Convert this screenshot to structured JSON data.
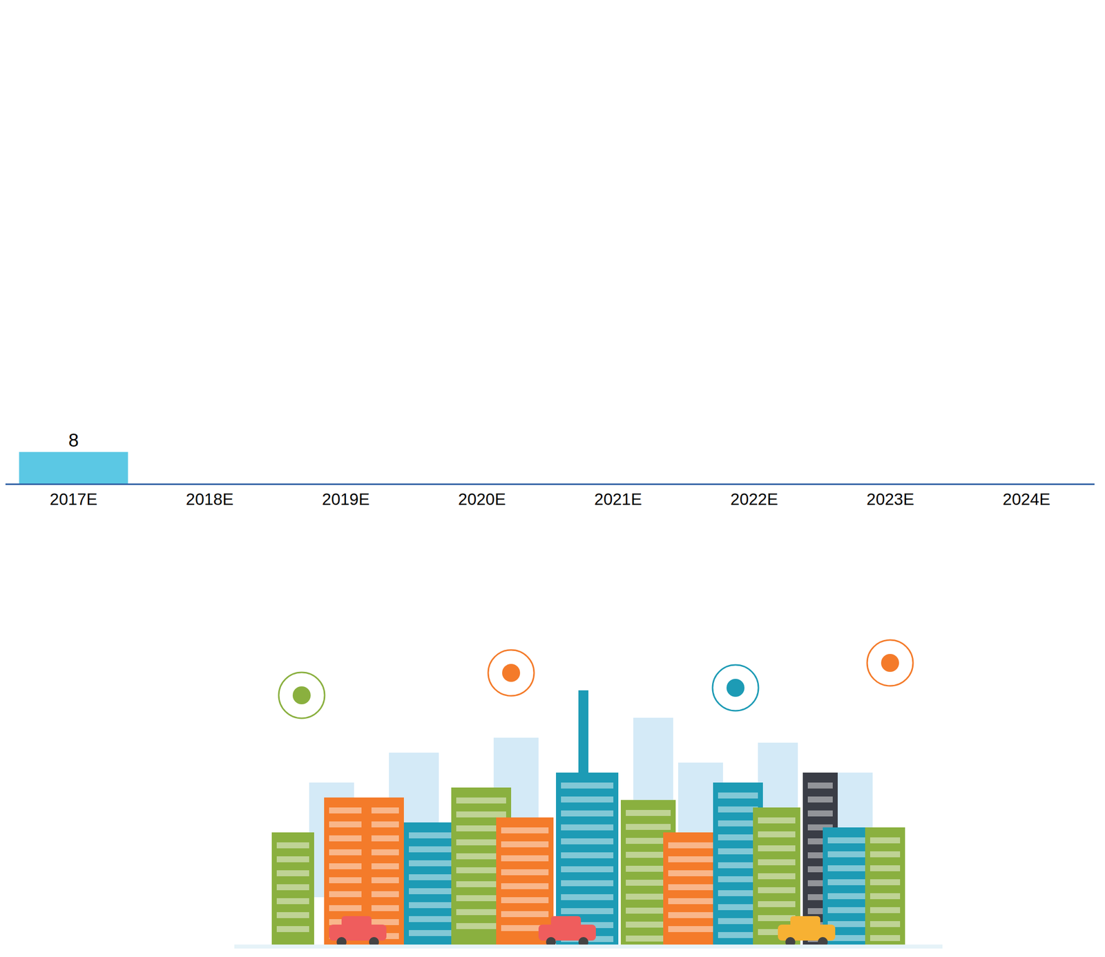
{
  "chart_data": {
    "type": "bar",
    "categories": [
      "2017E",
      "2018E",
      "2019E",
      "2020E",
      "2021E",
      "2022E",
      "2023E",
      "2024E"
    ],
    "values": [
      8,
      null,
      null,
      null,
      null,
      null,
      null,
      null
    ],
    "color": "#5bc8e4",
    "ylim": [
      0,
      120
    ],
    "data_labels": true,
    "grid": false,
    "tick_labels": "x"
  }
}
